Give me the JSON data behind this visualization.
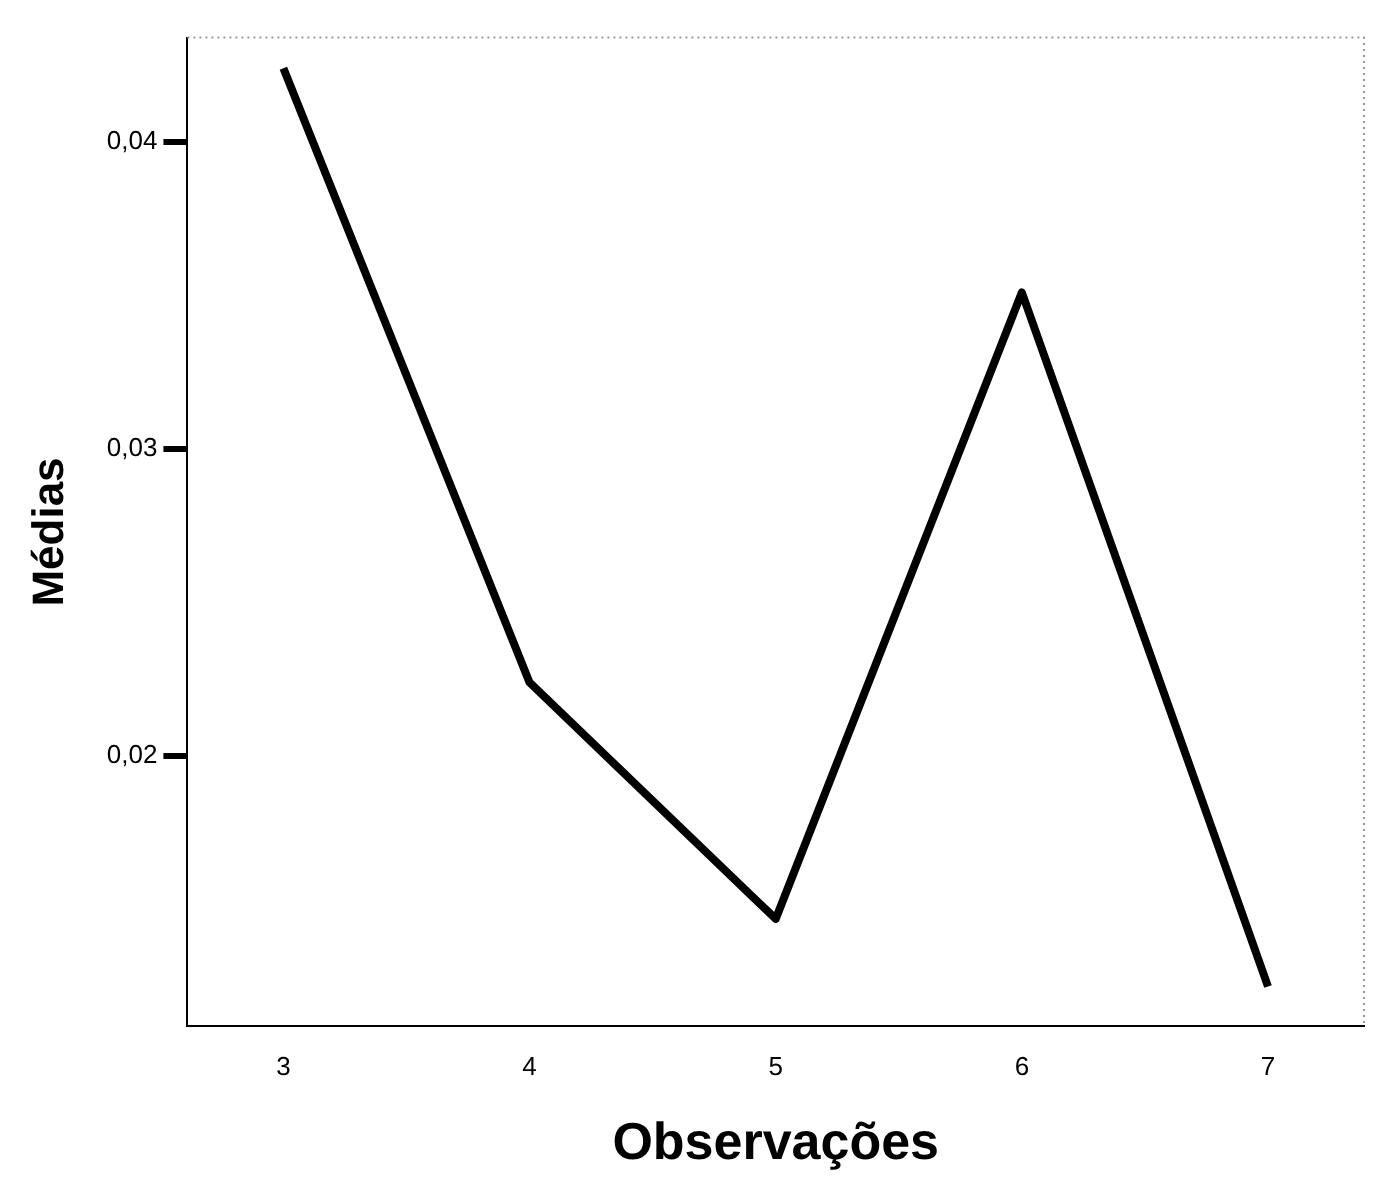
{
  "chart_data": {
    "type": "line",
    "xlabel": "Observações",
    "ylabel": "Médias",
    "x": [
      3,
      4,
      5,
      6,
      7
    ],
    "series": [
      {
        "color": "#000000",
        "values": [
          0.0424,
          0.0224,
          0.0147,
          0.0351,
          0.0125
        ]
      }
    ],
    "xlim": [
      2.61,
      7.39
    ],
    "xticks": [
      3,
      4,
      5,
      6,
      7
    ],
    "ylim": [
      0.0112,
      0.0434
    ],
    "yticks": [
      {
        "value": 0.02,
        "label": "0,02"
      },
      {
        "value": 0.03,
        "label": "0,03"
      },
      {
        "value": 0.04,
        "label": "0,04"
      }
    ],
    "grid": false,
    "legend": false,
    "line_style": "solid"
  }
}
